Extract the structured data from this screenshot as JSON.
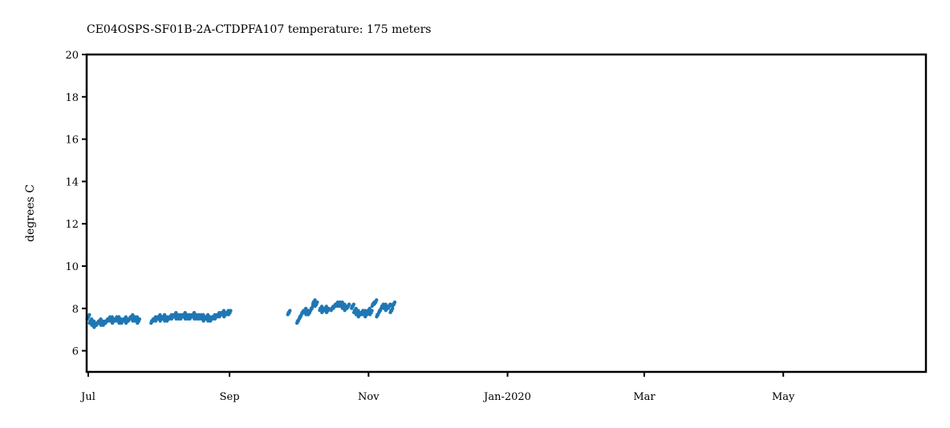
{
  "chart_data": {
    "type": "scatter",
    "title": "CE04OSPS-SF01B-2A-CTDPFA107 temperature: 175 meters",
    "xlabel": "",
    "ylabel": "degrees C",
    "xlim": [
      "2019-07-01",
      "2020-06-30"
    ],
    "ylim": [
      5,
      20
    ],
    "yticks": [
      6,
      8,
      10,
      12,
      14,
      16,
      18,
      20
    ],
    "xticks": [
      {
        "date": "2019-07-01",
        "label": "Jul"
      },
      {
        "date": "2019-09-01",
        "label": "Sep"
      },
      {
        "date": "2019-11-01",
        "label": "Nov"
      },
      {
        "date": "2020-01-01",
        "label": "Jan-2020"
      },
      {
        "date": "2020-03-01",
        "label": "Mar"
      },
      {
        "date": "2020-05-01",
        "label": "May"
      }
    ],
    "grid": false,
    "color": "#1f77b4",
    "series": [
      {
        "points": [
          [
            "2019-07-01",
            7.6
          ],
          [
            "2019-07-02",
            7.4
          ],
          [
            "2019-07-03",
            7.3
          ],
          [
            "2019-07-04",
            7.2
          ],
          [
            "2019-07-05",
            7.3
          ],
          [
            "2019-07-06",
            7.4
          ],
          [
            "2019-07-07",
            7.3
          ],
          [
            "2019-07-08",
            7.3
          ],
          [
            "2019-07-09",
            7.4
          ],
          [
            "2019-07-10",
            7.5
          ],
          [
            "2019-07-11",
            7.5
          ],
          [
            "2019-07-12",
            7.4
          ],
          [
            "2019-07-13",
            7.5
          ],
          [
            "2019-07-14",
            7.5
          ],
          [
            "2019-07-15",
            7.4
          ],
          [
            "2019-07-16",
            7.4
          ],
          [
            "2019-07-17",
            7.5
          ],
          [
            "2019-07-18",
            7.4
          ],
          [
            "2019-07-19",
            7.5
          ],
          [
            "2019-07-20",
            7.6
          ],
          [
            "2019-07-21",
            7.5
          ],
          [
            "2019-07-22",
            7.5
          ],
          [
            "2019-07-23",
            7.4
          ],
          [
            "2019-07-29",
            7.4
          ],
          [
            "2019-07-30",
            7.5
          ],
          [
            "2019-07-31",
            7.5
          ],
          [
            "2019-08-01",
            7.6
          ],
          [
            "2019-08-02",
            7.5
          ],
          [
            "2019-08-03",
            7.6
          ],
          [
            "2019-08-04",
            7.5
          ],
          [
            "2019-08-05",
            7.5
          ],
          [
            "2019-08-06",
            7.6
          ],
          [
            "2019-08-07",
            7.6
          ],
          [
            "2019-08-08",
            7.7
          ],
          [
            "2019-08-09",
            7.6
          ],
          [
            "2019-08-10",
            7.6
          ],
          [
            "2019-08-11",
            7.6
          ],
          [
            "2019-08-12",
            7.7
          ],
          [
            "2019-08-13",
            7.6
          ],
          [
            "2019-08-14",
            7.6
          ],
          [
            "2019-08-15",
            7.6
          ],
          [
            "2019-08-16",
            7.7
          ],
          [
            "2019-08-17",
            7.6
          ],
          [
            "2019-08-18",
            7.6
          ],
          [
            "2019-08-19",
            7.6
          ],
          [
            "2019-08-20",
            7.6
          ],
          [
            "2019-08-21",
            7.5
          ],
          [
            "2019-08-22",
            7.6
          ],
          [
            "2019-08-23",
            7.5
          ],
          [
            "2019-08-24",
            7.5
          ],
          [
            "2019-08-25",
            7.6
          ],
          [
            "2019-08-26",
            7.6
          ],
          [
            "2019-08-27",
            7.7
          ],
          [
            "2019-08-28",
            7.7
          ],
          [
            "2019-08-29",
            7.8
          ],
          [
            "2019-08-30",
            7.7
          ],
          [
            "2019-08-31",
            7.8
          ],
          [
            "2019-09-01",
            7.8
          ],
          [
            "2019-09-27",
            7.8
          ],
          [
            "2019-10-01",
            7.4
          ],
          [
            "2019-10-02",
            7.6
          ],
          [
            "2019-10-03",
            7.8
          ],
          [
            "2019-10-04",
            7.9
          ],
          [
            "2019-10-05",
            7.8
          ],
          [
            "2019-10-06",
            7.8
          ],
          [
            "2019-10-07",
            8.0
          ],
          [
            "2019-10-08",
            8.3
          ],
          [
            "2019-10-09",
            8.2
          ],
          [
            "2019-10-11",
            8.0
          ],
          [
            "2019-10-12",
            7.9
          ],
          [
            "2019-10-13",
            8.0
          ],
          [
            "2019-10-14",
            7.9
          ],
          [
            "2019-10-16",
            8.0
          ],
          [
            "2019-10-17",
            8.1
          ],
          [
            "2019-10-18",
            8.2
          ],
          [
            "2019-10-19",
            8.2
          ],
          [
            "2019-10-20",
            8.2
          ],
          [
            "2019-10-21",
            8.1
          ],
          [
            "2019-10-22",
            8.0
          ],
          [
            "2019-10-23",
            8.1
          ],
          [
            "2019-10-25",
            8.1
          ],
          [
            "2019-10-26",
            7.9
          ],
          [
            "2019-10-27",
            7.8
          ],
          [
            "2019-10-28",
            7.7
          ],
          [
            "2019-10-29",
            7.8
          ],
          [
            "2019-10-30",
            7.8
          ],
          [
            "2019-10-31",
            7.7
          ],
          [
            "2019-11-01",
            7.9
          ],
          [
            "2019-11-02",
            7.8
          ],
          [
            "2019-11-03",
            8.2
          ],
          [
            "2019-11-04",
            8.3
          ],
          [
            "2019-11-05",
            7.7
          ],
          [
            "2019-11-06",
            7.9
          ],
          [
            "2019-11-07",
            8.1
          ],
          [
            "2019-11-08",
            8.1
          ],
          [
            "2019-11-09",
            8.0
          ],
          [
            "2019-11-10",
            8.1
          ],
          [
            "2019-11-11",
            7.9
          ],
          [
            "2019-11-12",
            8.2
          ]
        ]
      }
    ]
  }
}
